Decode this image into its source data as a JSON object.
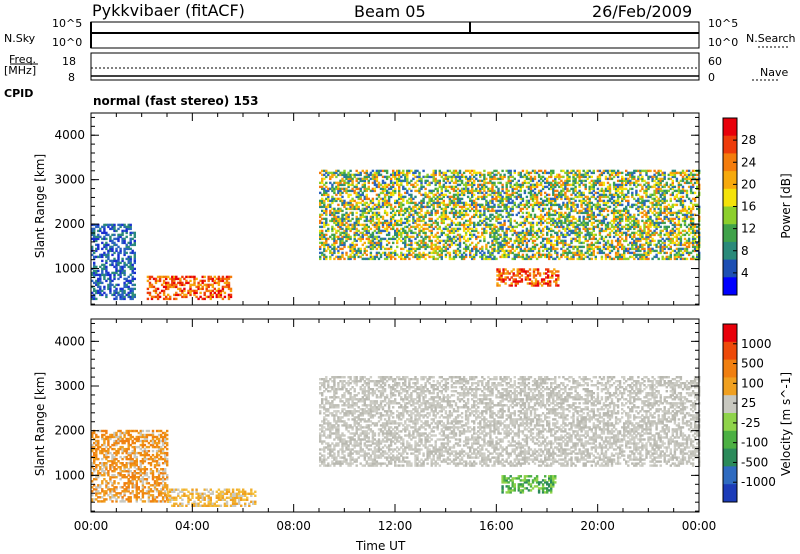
{
  "header": {
    "site_title": "Pykkvibaer (fitACF)",
    "beam": "Beam 05",
    "date": "26/Feb/2009"
  },
  "noise_panel": {
    "left_label": "N.Sky",
    "left_tick_top": "10^5",
    "left_tick_bottom": "10^0",
    "right_tick_top": "10^5",
    "right_tick_bottom": "10^0",
    "right_label": "N.Search"
  },
  "freq_panel": {
    "left_label_1": "Freq.",
    "left_label_2": "[MHz]",
    "left_tick_top": "18",
    "left_tick_bottom": "8",
    "right_tick_top": "60",
    "right_tick_bottom": "0",
    "right_label": "Nave"
  },
  "cpid": {
    "label": "CPID",
    "mode_text": "normal (fast stereo) 153"
  },
  "chart_data": [
    {
      "type": "heatmap",
      "title": "",
      "ylabel": "Slant Range [km]",
      "xlabel": "",
      "ylim": [
        180,
        4500
      ],
      "xlim_hours": [
        0,
        24
      ],
      "yticks": [
        "4000",
        "3000",
        "2000",
        "1000"
      ],
      "colorbar": {
        "label": "Power [dB]",
        "ticks": [
          "28",
          "24",
          "20",
          "16",
          "12",
          "8",
          "4"
        ],
        "colors": [
          "#0000ff",
          "#1d4fb3",
          "#2a8a7a",
          "#3fa24a",
          "#8ccf2c",
          "#f4e20a",
          "#f6a90d",
          "#f47c0c",
          "#ee3b0a",
          "#e8000a"
        ]
      },
      "regions": [
        {
          "t_start": 0.0,
          "t_end": 1.7,
          "r_min": 300,
          "r_max": 2000,
          "level": "low"
        },
        {
          "t_start": 2.2,
          "t_end": 5.5,
          "r_min": 300,
          "r_max": 800,
          "level": "high"
        },
        {
          "t_start": 9.0,
          "t_end": 24.0,
          "r_min": 1200,
          "r_max": 3200,
          "level": "medium-high"
        },
        {
          "t_start": 16.0,
          "t_end": 18.4,
          "r_min": 600,
          "r_max": 1000,
          "level": "high"
        }
      ]
    },
    {
      "type": "heatmap",
      "title": "",
      "ylabel": "Slant Range [km]",
      "xlabel": "Time UT",
      "ylim": [
        180,
        4500
      ],
      "xlim_hours": [
        0,
        24
      ],
      "yticks": [
        "4000",
        "3000",
        "2000",
        "1000"
      ],
      "xticks": [
        "00:00",
        "04:00",
        "08:00",
        "12:00",
        "16:00",
        "20:00",
        "00:00"
      ],
      "colorbar": {
        "label": "Velocity [m s^-1]",
        "ticks": [
          "1000",
          "500",
          "100",
          "25",
          "-25",
          "-100",
          "-500",
          "-1000"
        ],
        "colors": [
          "#1c3cb8",
          "#2f6bc0",
          "#2b8a5a",
          "#4cb043",
          "#8fd34a",
          "#c8c8c0",
          "#f0a020",
          "#f07f10",
          "#ee4a0a",
          "#e8000a"
        ]
      },
      "regions": [
        {
          "t_start": 0.0,
          "t_end": 3.0,
          "r_min": 400,
          "r_max": 2000,
          "level": "negative"
        },
        {
          "t_start": 3.0,
          "t_end": 6.5,
          "r_min": 300,
          "r_max": 700,
          "level": "negative-small"
        },
        {
          "t_start": 9.0,
          "t_end": 24.0,
          "r_min": 1200,
          "r_max": 3200,
          "level": "near-zero"
        },
        {
          "t_start": 16.2,
          "t_end": 18.3,
          "r_min": 600,
          "r_max": 1000,
          "level": "positive"
        }
      ]
    }
  ],
  "panel_colors": {
    "noise_line": "#000000",
    "frame": "#000000"
  }
}
